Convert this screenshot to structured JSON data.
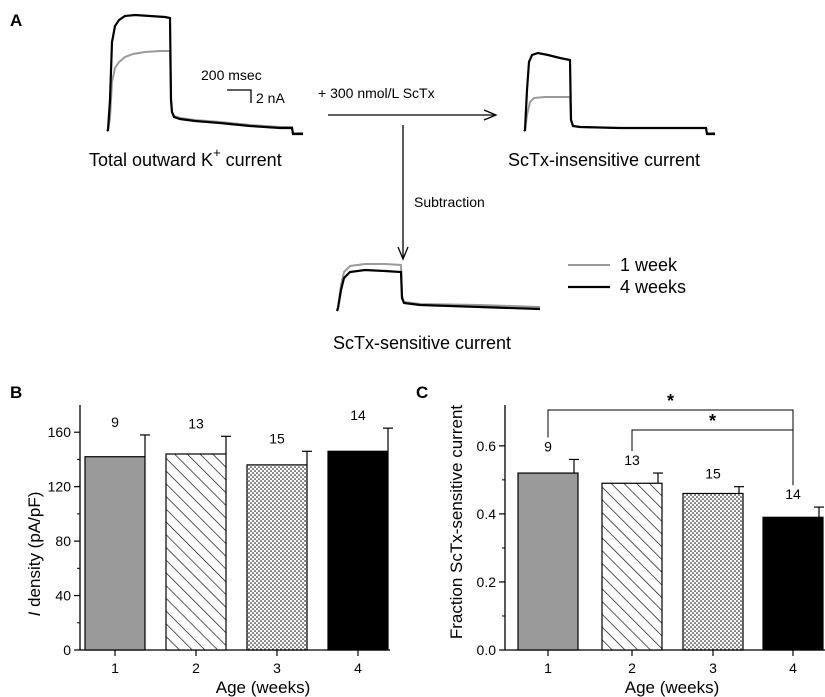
{
  "panel_a": {
    "letter": "A",
    "total_label_prefix": "Total outward K",
    "total_label_superscript": "+",
    "total_label_suffix": " current",
    "scale_time": "200 msec",
    "scale_amp": "2 nA",
    "drug_label": "+ 300 nmol/L ScTx",
    "insensitive_label": "ScTx-insensitive current",
    "subtraction_label": "Subtraction",
    "sensitive_label": "ScTx-sensitive current",
    "legend": [
      {
        "label": "1 week",
        "color": "#9a9a9a"
      },
      {
        "label": "4 weeks",
        "color": "#000000"
      }
    ]
  },
  "chart_data": [
    {
      "type": "bar",
      "panel": "B",
      "categories": [
        "1",
        "2",
        "3",
        "4"
      ],
      "values": [
        142,
        144,
        136,
        146
      ],
      "errors": [
        16,
        13,
        10,
        17
      ],
      "n_labels": [
        "9",
        "13",
        "15",
        "14"
      ],
      "xlabel": "Age (weeks)",
      "ylabel_italic": "I",
      "ylabel_rest": " density (pA/pF)",
      "ylim": [
        0,
        180
      ],
      "yticks": [
        0,
        40,
        80,
        120,
        160
      ],
      "ytick_labels": [
        "0",
        "40",
        "80",
        "120",
        "160"
      ],
      "fills": [
        "gray",
        "diagonal-hatch",
        "dots",
        "black"
      ]
    },
    {
      "type": "bar",
      "panel": "C",
      "categories": [
        "1",
        "2",
        "3",
        "4"
      ],
      "values": [
        0.52,
        0.49,
        0.46,
        0.39
      ],
      "errors": [
        0.04,
        0.03,
        0.02,
        0.03
      ],
      "n_labels": [
        "9",
        "13",
        "15",
        "14"
      ],
      "xlabel": "Age (weeks)",
      "ylabel": "Fraction ScTx-sensitive current",
      "ylim": [
        0,
        0.72
      ],
      "yticks": [
        0.0,
        0.2,
        0.4,
        0.6
      ],
      "ytick_labels": [
        "0.0",
        "0.2",
        "0.4",
        "0.6"
      ],
      "fills": [
        "gray",
        "diagonal-hatch",
        "dots",
        "black"
      ],
      "significance": [
        {
          "from": "1",
          "to": "4",
          "label": "*"
        },
        {
          "from": "2",
          "to": "4",
          "label": "*"
        }
      ]
    }
  ]
}
